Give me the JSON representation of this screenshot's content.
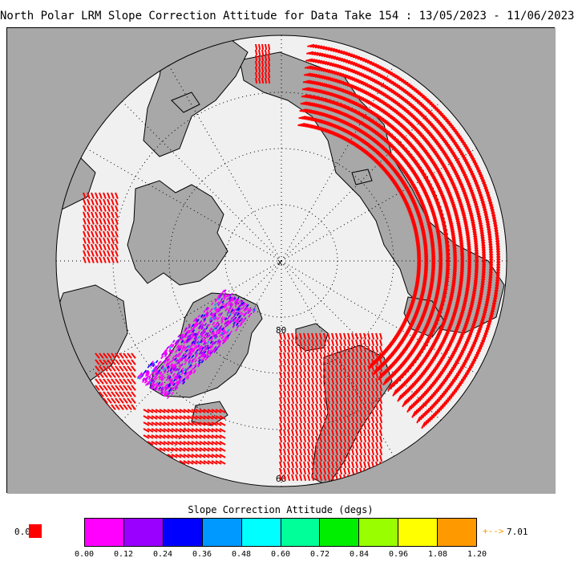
{
  "title": "North Polar LRM Slope Correction Attitude for Data Take 154 : 13/05/2023 - 11/06/2023",
  "map": {
    "projection": "north-polar-stereographic",
    "lat_labels": [
      "80",
      "60"
    ],
    "pole_marker": "x",
    "colors": {
      "ocean": "#f0f0f0",
      "land": "#a8a8a8",
      "coast": "#000000",
      "grid": "#000000",
      "outlier": "#ff0000"
    }
  },
  "colorbar": {
    "title": "Slope Correction Attitude (degs)",
    "colors": [
      "#ff00ff",
      "#9900ff",
      "#0000ff",
      "#0099ff",
      "#00ffff",
      "#00ff99",
      "#00ee00",
      "#99ff00",
      "#ffff00",
      "#ff9900"
    ],
    "ticks": [
      "0.00",
      "0.12",
      "0.24",
      "0.36",
      "0.48",
      "0.60",
      "0.72",
      "0.84",
      "0.96",
      "1.08",
      "1.20"
    ],
    "below_min_label": "0.0",
    "above_max_arrow": "+-->",
    "above_max_label": "7.01"
  }
}
